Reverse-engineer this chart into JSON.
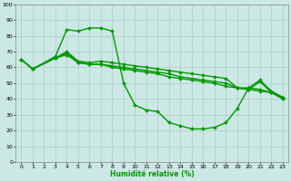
{
  "xlabel": "Humidité relative (%)",
  "xlim": [
    -0.5,
    23.5
  ],
  "ylim": [
    0,
    100
  ],
  "xticks": [
    0,
    1,
    2,
    3,
    4,
    5,
    6,
    7,
    8,
    9,
    10,
    11,
    12,
    13,
    14,
    15,
    16,
    17,
    18,
    19,
    20,
    21,
    22,
    23
  ],
  "yticks": [
    0,
    10,
    20,
    30,
    40,
    50,
    60,
    70,
    80,
    90,
    100
  ],
  "bg_color": "#cce8e4",
  "grid_color": "#aacccc",
  "line_color": "#009900",
  "line_width": 1.0,
  "marker": "D",
  "marker_size": 2.0,
  "series": [
    {
      "x": [
        0,
        1,
        3,
        4,
        5,
        6,
        7,
        8,
        9,
        10,
        11,
        12,
        13,
        14,
        15,
        16,
        17,
        18,
        19,
        20,
        21,
        22,
        23
      ],
      "y": [
        65,
        59,
        66,
        70,
        64,
        63,
        64,
        63,
        62,
        61,
        60,
        59,
        58,
        57,
        56,
        55,
        54,
        53,
        47,
        46,
        45,
        44,
        41
      ]
    },
    {
      "x": [
        0,
        1,
        3,
        4,
        5,
        6,
        7,
        8,
        9,
        10,
        11,
        12,
        13,
        14,
        15,
        16,
        17,
        18,
        19,
        20,
        21,
        22,
        23
      ],
      "y": [
        65,
        59,
        67,
        84,
        83,
        85,
        85,
        83,
        50,
        36,
        33,
        32,
        25,
        23,
        21,
        21,
        22,
        25,
        34,
        47,
        52,
        45,
        41
      ]
    },
    {
      "x": [
        0,
        1,
        3,
        4,
        5,
        6,
        7,
        8,
        9,
        10,
        11,
        12,
        13,
        14,
        15,
        16,
        17,
        18,
        19,
        20,
        21,
        22,
        23
      ],
      "y": [
        65,
        59,
        66,
        69,
        63,
        62,
        62,
        61,
        60,
        59,
        58,
        57,
        56,
        54,
        53,
        52,
        51,
        50,
        47,
        47,
        46,
        44,
        41
      ]
    },
    {
      "x": [
        0,
        1,
        3,
        4,
        5,
        6,
        7,
        8,
        9,
        10,
        11,
        12,
        13,
        14,
        15,
        16,
        17,
        18,
        19,
        20,
        21,
        22,
        23
      ],
      "y": [
        65,
        59,
        66,
        68,
        63,
        62,
        62,
        60,
        59,
        58,
        57,
        56,
        54,
        53,
        52,
        51,
        50,
        48,
        47,
        46,
        51,
        44,
        40
      ]
    }
  ]
}
